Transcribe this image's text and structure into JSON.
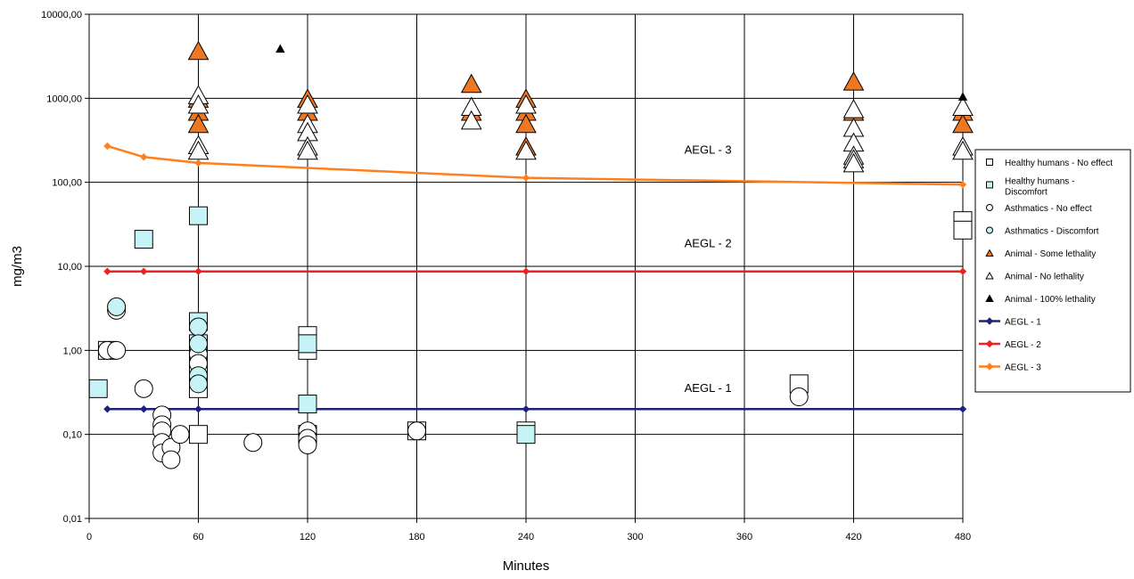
{
  "chart_data": {
    "type": "scatter",
    "title": "",
    "xlabel": "Minutes",
    "ylabel": "mg/m3",
    "x_range": [
      0,
      480
    ],
    "y_range": [
      0.01,
      10000
    ],
    "y_scale": "log",
    "grid": true,
    "legend_position": "right",
    "x_ticks": [
      0,
      60,
      120,
      180,
      240,
      300,
      360,
      420,
      480
    ],
    "x_tick_labels": [
      "0",
      "60",
      "120",
      "180",
      "240",
      "300",
      "360",
      "420",
      "480"
    ],
    "y_ticks": [
      0.01,
      0.1,
      1,
      10,
      100,
      1000,
      10000
    ],
    "y_tick_labels": [
      "0,01",
      "0,10",
      "1,00",
      "10,00",
      "100,00",
      "1000,00",
      "10000,00"
    ],
    "series": [
      {
        "name": "Healthy humans - No effect",
        "marker": "square",
        "fill": "#ffffff",
        "stroke": "#000000",
        "points": [
          [
            10,
            1.0
          ],
          [
            60,
            1.0
          ],
          [
            60,
            0.8
          ],
          [
            60,
            0.5
          ],
          [
            60,
            0.35
          ],
          [
            60,
            0.1
          ],
          [
            120,
            1.5
          ],
          [
            120,
            1.0
          ],
          [
            120,
            0.1
          ],
          [
            180,
            0.11
          ],
          [
            240,
            0.11
          ],
          [
            390,
            0.4
          ],
          [
            480,
            35
          ],
          [
            480,
            27
          ]
        ]
      },
      {
        "name": "Healthy humans - Discomfort",
        "marker": "square",
        "fill": "#c6f3f5",
        "stroke": "#000000",
        "points": [
          [
            5,
            0.35
          ],
          [
            30,
            21
          ],
          [
            60,
            40
          ],
          [
            60,
            2.2
          ],
          [
            60,
            1.2
          ],
          [
            120,
            1.2
          ],
          [
            120,
            0.23
          ],
          [
            240,
            0.1
          ]
        ]
      },
      {
        "name": "Asthmatics - No effect",
        "marker": "circle",
        "fill": "#ffffff",
        "stroke": "#000000",
        "points": [
          [
            10,
            1.0
          ],
          [
            15,
            1.0
          ],
          [
            15,
            3.0
          ],
          [
            30,
            0.35
          ],
          [
            40,
            0.17
          ],
          [
            40,
            0.13
          ],
          [
            40,
            0.11
          ],
          [
            40,
            0.08
          ],
          [
            40,
            0.06
          ],
          [
            45,
            0.07
          ],
          [
            45,
            0.05
          ],
          [
            50,
            0.1
          ],
          [
            60,
            1.1
          ],
          [
            60,
            0.9
          ],
          [
            60,
            0.7
          ],
          [
            60,
            0.45
          ],
          [
            90,
            0.08
          ],
          [
            120,
            0.11
          ],
          [
            120,
            0.09
          ],
          [
            120,
            0.075
          ],
          [
            180,
            0.11
          ],
          [
            390,
            0.28
          ]
        ]
      },
      {
        "name": "Asthmatics - Discomfort",
        "marker": "circle",
        "fill": "#c6f3f5",
        "stroke": "#000000",
        "points": [
          [
            15,
            3.3
          ],
          [
            60,
            1.9
          ],
          [
            60,
            1.2
          ],
          [
            60,
            0.5
          ],
          [
            60,
            0.4
          ]
        ]
      },
      {
        "name": "Animal - Some lethality",
        "marker": "triangle",
        "fill": "#ee7722",
        "stroke": "#000000",
        "points": [
          [
            60,
            3700
          ],
          [
            60,
            1000
          ],
          [
            60,
            700
          ],
          [
            60,
            500
          ],
          [
            120,
            1000
          ],
          [
            120,
            700
          ],
          [
            210,
            1500
          ],
          [
            210,
            700
          ],
          [
            240,
            1000
          ],
          [
            240,
            700
          ],
          [
            240,
            500
          ],
          [
            240,
            270
          ],
          [
            420,
            1600
          ],
          [
            420,
            700
          ],
          [
            480,
            700
          ],
          [
            480,
            500
          ]
        ]
      },
      {
        "name": "Animal  - No lethality",
        "marker": "triangle",
        "fill": "#ffffff",
        "stroke": "#000000",
        "points": [
          [
            60,
            1100
          ],
          [
            60,
            850
          ],
          [
            60,
            280
          ],
          [
            60,
            240
          ],
          [
            120,
            850
          ],
          [
            120,
            500
          ],
          [
            120,
            400
          ],
          [
            120,
            270
          ],
          [
            120,
            240
          ],
          [
            210,
            800
          ],
          [
            210,
            550
          ],
          [
            240,
            850
          ],
          [
            240,
            240
          ],
          [
            420,
            750
          ],
          [
            420,
            450
          ],
          [
            420,
            300
          ],
          [
            420,
            210
          ],
          [
            420,
            190
          ],
          [
            420,
            170
          ],
          [
            480,
            800
          ],
          [
            480,
            270
          ],
          [
            480,
            240
          ]
        ]
      },
      {
        "name": "Animal - 100% lethality",
        "marker": "triangle-small",
        "fill": "#000000",
        "stroke": "#000000",
        "points": [
          [
            105,
            3900
          ],
          [
            480,
            1050
          ]
        ]
      },
      {
        "name": "AEGL - 1",
        "marker": "line-diamond",
        "color": "#1a237e",
        "points": [
          [
            10,
            0.2
          ],
          [
            30,
            0.2
          ],
          [
            60,
            0.2
          ],
          [
            240,
            0.2
          ],
          [
            480,
            0.2
          ]
        ]
      },
      {
        "name": "AEGL - 2",
        "marker": "line-diamond",
        "color": "#ee2222",
        "points": [
          [
            10,
            8.7
          ],
          [
            30,
            8.7
          ],
          [
            60,
            8.7
          ],
          [
            240,
            8.7
          ],
          [
            480,
            8.7
          ]
        ]
      },
      {
        "name": "AEGL - 3",
        "marker": "line-diamond",
        "color": "#ff7f1e",
        "points": [
          [
            10,
            270
          ],
          [
            30,
            200
          ],
          [
            60,
            170
          ],
          [
            240,
            113
          ],
          [
            480,
            94
          ]
        ]
      }
    ],
    "annotations": [
      {
        "text": "AEGL - 3",
        "x": 327,
        "y": 220
      },
      {
        "text": "AEGL - 2",
        "x": 327,
        "y": 17
      },
      {
        "text": "AEGL - 1",
        "x": 327,
        "y": 0.32
      }
    ]
  }
}
